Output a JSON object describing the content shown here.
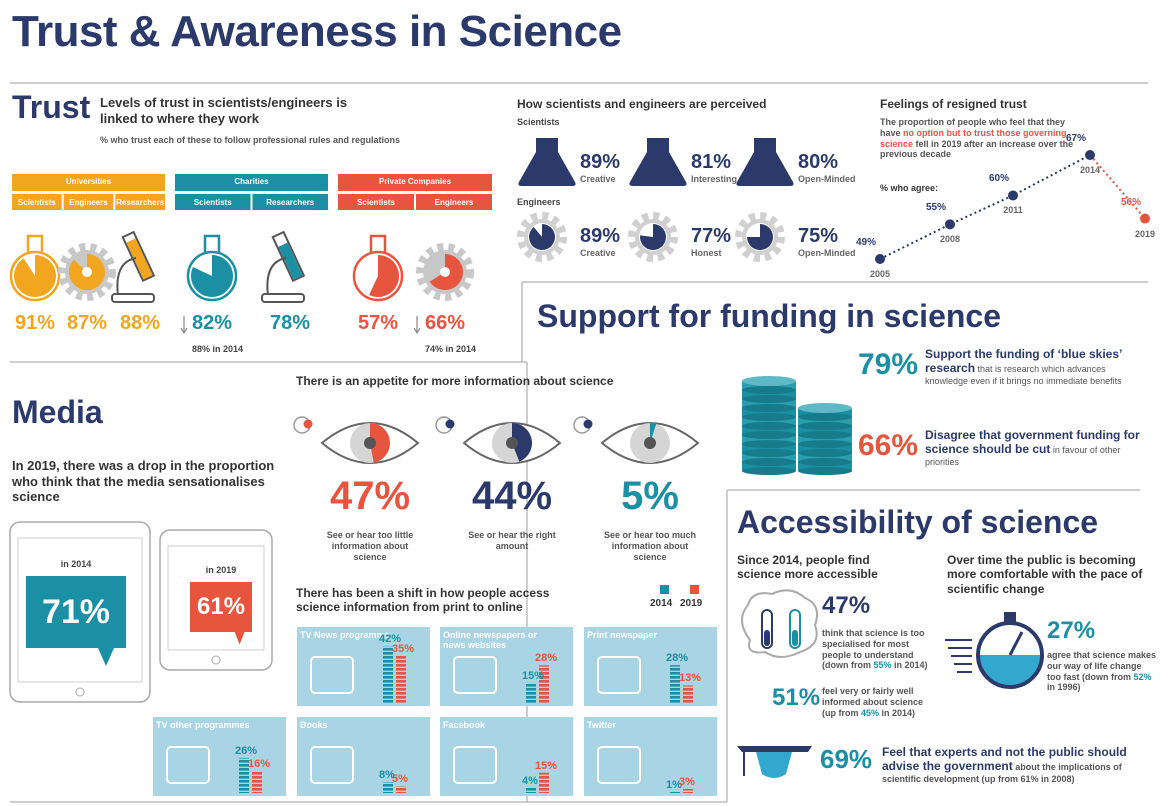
{
  "header": {
    "title": "Trust & Awareness in Science"
  },
  "trust": {
    "title": "Trust",
    "subtitle": "Levels of trust in scientists/engineers is linked to where they work",
    "note": "% who trust each of these to follow professional rules and regulations",
    "groups": [
      {
        "name": "Universities",
        "color": "#f2a51e",
        "items": [
          {
            "label": "Scientists",
            "value": 91,
            "value_label": "91%"
          },
          {
            "label": "Engineers",
            "value": 87,
            "value_label": "87%"
          },
          {
            "label": "Researchers",
            "value": 88,
            "value_label": "88%"
          }
        ]
      },
      {
        "name": "Charities",
        "color": "#1b8fa3",
        "items": [
          {
            "label": "Scientists",
            "value": 82,
            "value_label": "82%",
            "note": "88% in 2014"
          },
          {
            "label": "Researchers",
            "value": 78,
            "value_label": "78%"
          }
        ]
      },
      {
        "name": "Private Companies",
        "color": "#e8553e",
        "items": [
          {
            "label": "Scientists",
            "value": 57,
            "value_label": "57%"
          },
          {
            "label": "Engineers",
            "value": 66,
            "value_label": "66%",
            "note": "74% in 2014"
          }
        ]
      }
    ]
  },
  "perception": {
    "title": "How scientists and engineers are perceived",
    "groups": [
      {
        "name": "Scientists",
        "items": [
          {
            "value": 89,
            "value_label": "89%",
            "label": "Creative"
          },
          {
            "value": 81,
            "value_label": "81%",
            "label": "Interesting"
          },
          {
            "value": 80,
            "value_label": "80%",
            "label": "Open-Minded"
          }
        ]
      },
      {
        "name": "Engineers",
        "items": [
          {
            "value": 89,
            "value_label": "89%",
            "label": "Creative"
          },
          {
            "value": 77,
            "value_label": "77%",
            "label": "Honest"
          },
          {
            "value": 75,
            "value_label": "75%",
            "label": "Open-Minded"
          }
        ]
      }
    ]
  },
  "resigned": {
    "title": "Feelings of resigned trust",
    "text_before": "The proportion of people who feel that they have ",
    "highlight": "no option but to trust those governing science",
    "text_after": " fell in 2019 after an increase over the previous decade",
    "axis_label": "% who agree:",
    "points": [
      {
        "year": "2005",
        "value": 49,
        "value_label": "49%"
      },
      {
        "year": "2008",
        "value": 55,
        "value_label": "55%"
      },
      {
        "year": "2011",
        "value": 60,
        "value_label": "60%"
      },
      {
        "year": "2014",
        "value": 67,
        "value_label": "67%"
      },
      {
        "year": "2019",
        "value": 56,
        "value_label": "56%"
      }
    ]
  },
  "funding": {
    "title": "Support for funding in science",
    "items": [
      {
        "value_label": "79%",
        "color": "#1b8fa3",
        "bold": "Support the funding  of ‘blue skies’ research",
        "text": " that is research which advances knowledge even if it brings no immediate benefits"
      },
      {
        "value_label": "66%",
        "color": "#e8553e",
        "bold": "Disagree that government funding for science should be cut",
        "text": " in favour of other priorities"
      }
    ]
  },
  "media": {
    "title": "Media",
    "text": "In 2019, there was a drop in the proportion who think that the media sensationalises science",
    "tablets": [
      {
        "year_label": "in 2014",
        "value_label": "71%",
        "color": "#1b8fa3"
      },
      {
        "year_label": "in 2019",
        "value_label": "61%",
        "color": "#e8553e"
      }
    ],
    "appetite": {
      "title": "There is an appetite for more information about science",
      "items": [
        {
          "value": 47,
          "value_label": "47%",
          "color": "#e8553e",
          "label": "See or hear too little information about science"
        },
        {
          "value": 44,
          "value_label": "44%",
          "color": "#2b3a6b",
          "label": "See or hear the right amount"
        },
        {
          "value": 5,
          "value_label": "5%",
          "color": "#1b8fa3",
          "label": "See or hear too much information about science"
        }
      ]
    },
    "access": {
      "title": "There has been a shift in how people access science information from print to online",
      "legend": [
        "2014",
        "2019"
      ],
      "colors": [
        "#1b8fa3",
        "#e8553e"
      ],
      "channels": [
        {
          "name": "TV News programme",
          "values": [
            42,
            35
          ],
          "value_labels": [
            "42%",
            "35%"
          ]
        },
        {
          "name": "Online newspapers or news websites",
          "values": [
            15,
            28
          ],
          "value_labels": [
            "15%",
            "28%"
          ]
        },
        {
          "name": "Print newspaper",
          "values": [
            28,
            13
          ],
          "value_labels": [
            "28%",
            "13%"
          ]
        },
        {
          "name": "TV other programmes",
          "values": [
            26,
            16
          ],
          "value_labels": [
            "26%",
            "16%"
          ]
        },
        {
          "name": "Books",
          "values": [
            8,
            5
          ],
          "value_labels": [
            "8%",
            "5%"
          ]
        },
        {
          "name": "Facebook",
          "values": [
            4,
            15
          ],
          "value_labels": [
            "4%",
            "15%"
          ]
        },
        {
          "name": "Twitter",
          "values": [
            1,
            3
          ],
          "value_labels": [
            "1%",
            "3%"
          ]
        }
      ]
    }
  },
  "accessibility": {
    "title": "Accessibility of science",
    "left": {
      "heading": "Since 2014, people find science more accessible",
      "stats": [
        {
          "value_label": "47%",
          "color": "#2b3a6b",
          "text": "think that science is too specialised for most people to understand (down from ",
          "highlight": "55%",
          "text_after": " in 2014)"
        },
        {
          "value_label": "51%",
          "color": "#1b8fa3",
          "text": "feel very or fairly well informed about science (up from ",
          "highlight": "45%",
          "text_after": " in 2014)"
        }
      ]
    },
    "right": {
      "heading": "Over time the public is becoming more comfortable with the pace of scientific change",
      "stat": {
        "value_label": "27%",
        "color": "#1b8fa3",
        "text": "agree that science makes our way of life change too fast (down from ",
        "highlight": "52%",
        "text_after": " in 1996)"
      }
    },
    "bottom": {
      "value_label": "69%",
      "color": "#1b8fa3",
      "bold": "Feel that experts and not the public should advise the government",
      "text": " about the implications of scientific development (up from 61% in 2008)"
    }
  }
}
